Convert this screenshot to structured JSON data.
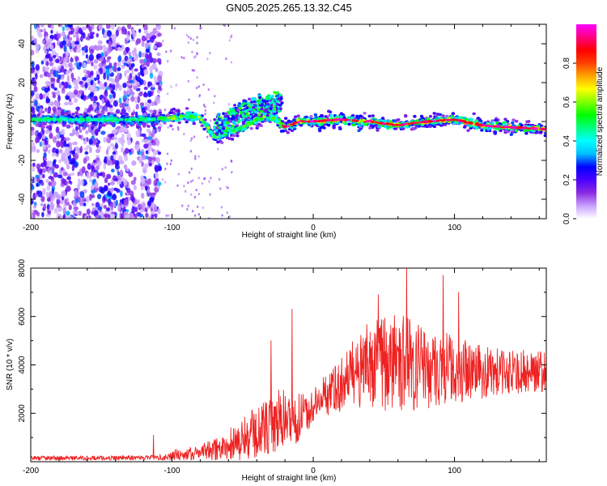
{
  "figure": {
    "title": "GN05.2025.265.13.32.C45"
  },
  "chart_data": [
    {
      "type": "heatmap",
      "name": "spectrogram",
      "title": "GN05.2025.265.13.32.C45",
      "xlabel": "Height of straight line (km)",
      "ylabel": "Frequency (Hz)",
      "xlim": [
        -200,
        165
      ],
      "ylim": [
        -50,
        50
      ],
      "xticks": [
        -200,
        -100,
        0,
        100
      ],
      "yticks": [
        -40,
        -20,
        0,
        20,
        40
      ],
      "colorbar": {
        "label": "Normalized spectral amplitude",
        "range": [
          0,
          1
        ],
        "ticks": [
          0.0,
          0.2,
          0.4,
          0.6,
          0.8
        ],
        "colors": [
          "#ffffff",
          "#c9a0ff",
          "#8a2be2",
          "#4b00ff",
          "#0000ff",
          "#00bfff",
          "#00ffff",
          "#00ff80",
          "#00ff00",
          "#80ff00",
          "#ffff00",
          "#ffa500",
          "#ff4000",
          "#ff0000",
          "#ff0080",
          "#ff00ff"
        ]
      },
      "signal_trace": {
        "x": [
          -115,
          -100,
          -90,
          -80,
          -70,
          -60,
          -50,
          -40,
          -30,
          -20,
          -10,
          0,
          20,
          40,
          60,
          80,
          100,
          120,
          140,
          165
        ],
        "freq": [
          1,
          2,
          3,
          2,
          -8,
          -6,
          -3,
          1,
          3,
          -3,
          0,
          0,
          1,
          0,
          -2,
          0,
          1,
          -2,
          -3,
          -4
        ]
      },
      "noise_region_x": [
        -200,
        -112
      ],
      "upper_branch": {
        "x": [
          -70,
          -60,
          -50,
          -40,
          -30,
          -22
        ],
        "freq": [
          2,
          6,
          10,
          13,
          14,
          15
        ]
      }
    },
    {
      "type": "line",
      "name": "snr",
      "xlabel": "Height of straight line (km)",
      "ylabel": "SNR (10 * v/v)",
      "xlim": [
        -200,
        165
      ],
      "ylim": [
        0,
        8000
      ],
      "xticks": [
        -200,
        -100,
        0,
        100
      ],
      "yticks": [
        2000,
        4000,
        6000,
        8000
      ],
      "color": "#ee2222",
      "envelope": {
        "x": [
          -200,
          -150,
          -110,
          -100,
          -90,
          -80,
          -70,
          -60,
          -50,
          -40,
          -30,
          -20,
          -10,
          0,
          10,
          20,
          30,
          40,
          50,
          60,
          70,
          80,
          90,
          100,
          120,
          140,
          165
        ],
        "mean": [
          150,
          150,
          180,
          250,
          300,
          400,
          500,
          700,
          900,
          1200,
          1500,
          1800,
          1800,
          2300,
          2800,
          3200,
          3700,
          4000,
          4100,
          4100,
          4000,
          3900,
          3900,
          3800,
          3700,
          3700,
          3800
        ],
        "amp": [
          90,
          90,
          100,
          250,
          250,
          300,
          450,
          700,
          900,
          1100,
          1300,
          1300,
          1000,
          700,
          900,
          1100,
          1500,
          1800,
          2000,
          2000,
          1900,
          1700,
          1600,
          1400,
          1100,
          900,
          900
        ]
      },
      "spikes": [
        {
          "x": -113,
          "y": 1100
        },
        {
          "x": -30,
          "y": 5000
        },
        {
          "x": -15,
          "y": 6300
        },
        {
          "x": 46,
          "y": 6900
        },
        {
          "x": 66,
          "y": 8100
        },
        {
          "x": 92,
          "y": 7700
        },
        {
          "x": 103,
          "y": 7000
        }
      ]
    }
  ]
}
